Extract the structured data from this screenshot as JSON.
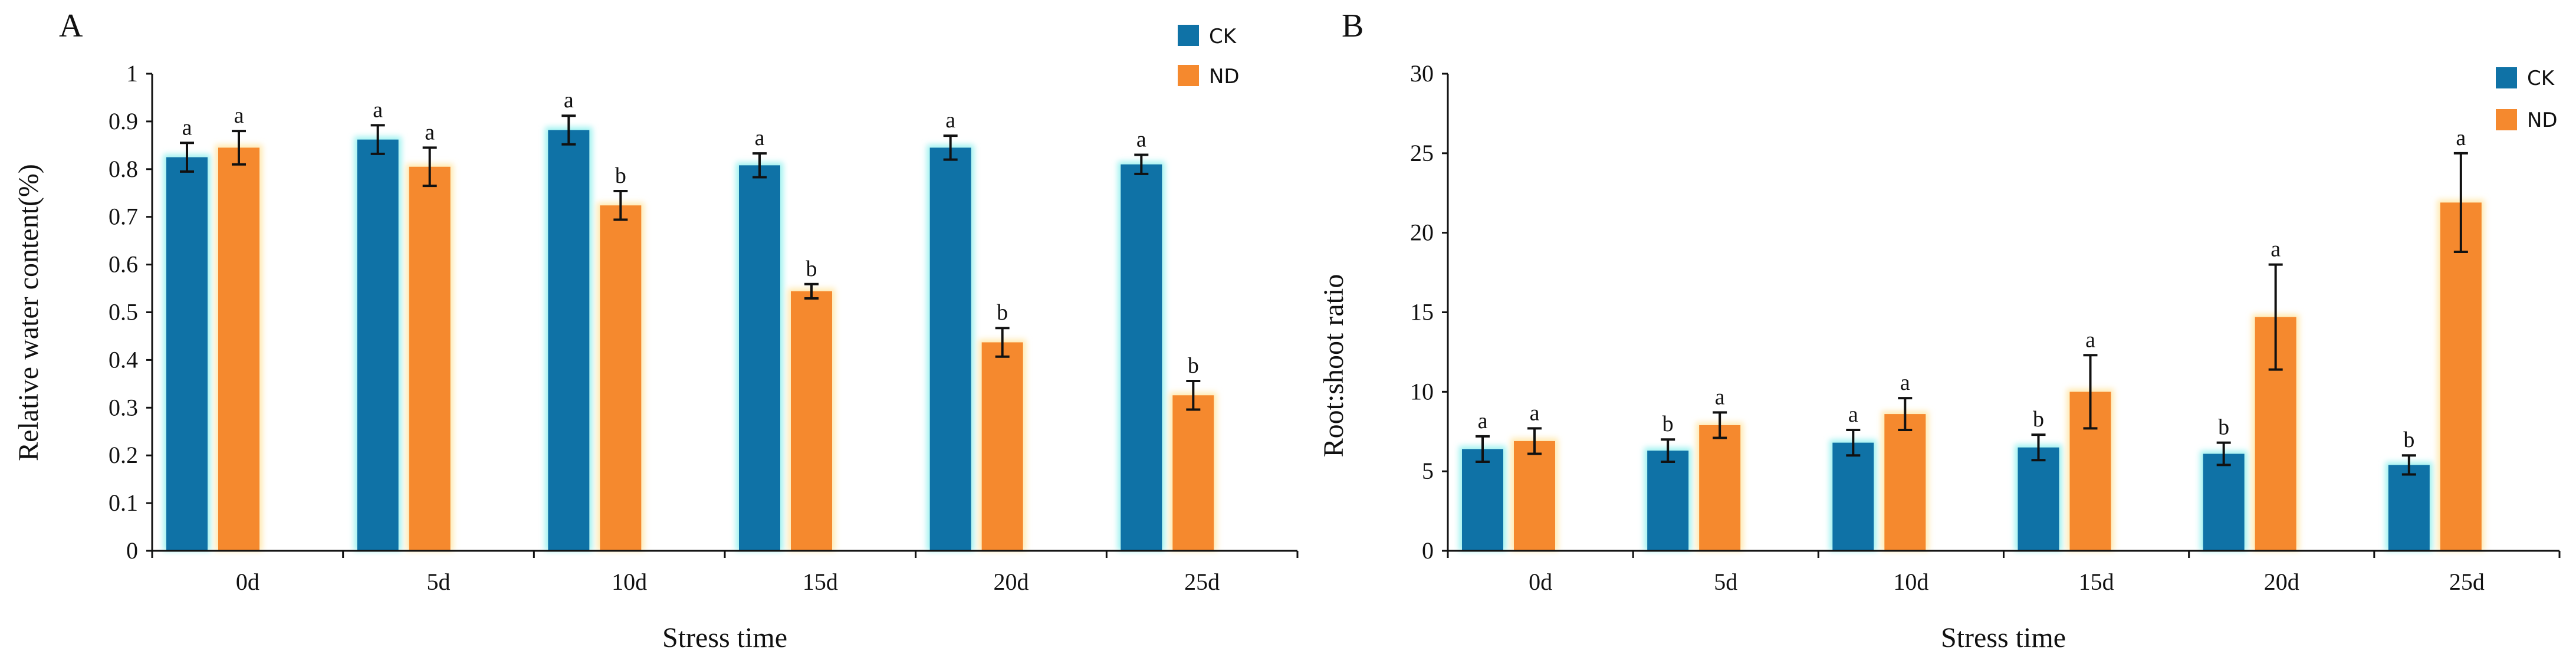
{
  "colors": {
    "CK": "#0f72a6",
    "ND": "#f5892e",
    "CK_glow": "#9ff2f0",
    "ND_glow": "#ffe9b0"
  },
  "chart_data": [
    {
      "id": "A",
      "panel_label": "A",
      "type": "bar",
      "categories": [
        "0d",
        "5d",
        "10d",
        "15d",
        "20d",
        "25d"
      ],
      "series": [
        {
          "name": "CK",
          "values": [
            0.825,
            0.862,
            0.882,
            0.808,
            0.845,
            0.81
          ],
          "errors": [
            0.03,
            0.03,
            0.03,
            0.025,
            0.025,
            0.02
          ],
          "labels": [
            "a",
            "a",
            "a",
            "a",
            "a",
            "a"
          ]
        },
        {
          "name": "ND",
          "values": [
            0.845,
            0.805,
            0.724,
            0.544,
            0.437,
            0.326
          ],
          "errors": [
            0.035,
            0.04,
            0.03,
            0.015,
            0.03,
            0.03
          ],
          "labels": [
            "a",
            "a",
            "b",
            "b",
            "b",
            "b"
          ]
        }
      ],
      "xlabel": "Stress time",
      "ylabel": "Relative water content(%)",
      "ylim": [
        0,
        1
      ],
      "yticks": [
        "0",
        "0.1",
        "0.2",
        "0.3",
        "0.4",
        "0.5",
        "0.6",
        "0.7",
        "0.8",
        "0.9",
        "1"
      ],
      "legend": [
        "CK",
        "ND"
      ],
      "legend_position": "top-right"
    },
    {
      "id": "B",
      "panel_label": "B",
      "type": "bar",
      "categories": [
        "0d",
        "5d",
        "10d",
        "15d",
        "20d",
        "25d"
      ],
      "series": [
        {
          "name": "CK",
          "values": [
            6.4,
            6.3,
            6.8,
            6.5,
            6.1,
            5.4
          ],
          "errors": [
            0.8,
            0.7,
            0.8,
            0.8,
            0.7,
            0.6
          ],
          "labels": [
            "a",
            "b",
            "a",
            "b",
            "b",
            "b"
          ]
        },
        {
          "name": "ND",
          "values": [
            6.9,
            7.9,
            8.6,
            10.0,
            14.7,
            21.9
          ],
          "errors": [
            0.8,
            0.8,
            1.0,
            2.3,
            3.3,
            3.1
          ],
          "labels": [
            "a",
            "a",
            "a",
            "a",
            "a",
            "a"
          ]
        }
      ],
      "xlabel": "Stress time",
      "ylabel": "Root:shoot ratio",
      "ylim": [
        0,
        30
      ],
      "yticks": [
        "0",
        "5",
        "10",
        "15",
        "20",
        "25",
        "30"
      ],
      "legend": [
        "CK",
        "ND"
      ],
      "legend_position": "top-right"
    }
  ]
}
